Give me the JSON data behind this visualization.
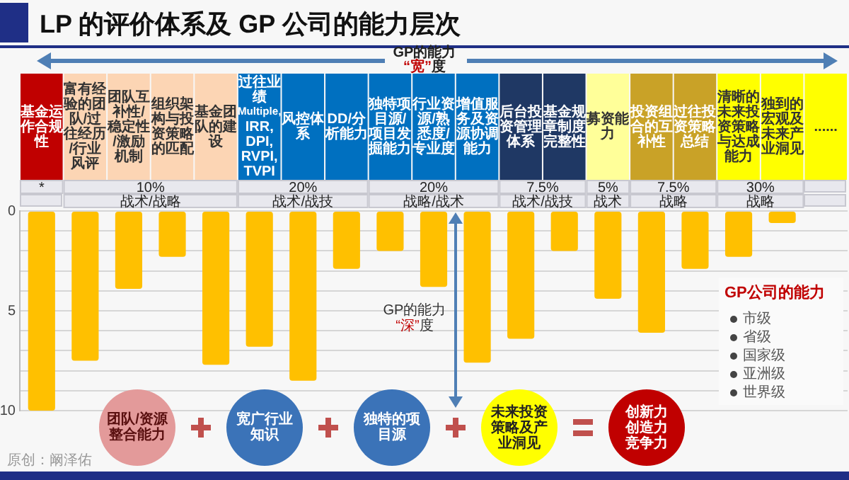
{
  "chart_data": {
    "type": "bar",
    "title": "LP 的评价体系及 GP 公司的能力层次",
    "categories": [
      "基金运作合规性",
      "富有经验的团队/过往经历/行业风评",
      "团队互补性/稳定性/激励机制",
      "组织架构与投资策略的匹配",
      "基金团队的建设",
      "过往业绩Multiple, IRR, DPI, RVPI, TVPI",
      "风控体系",
      "DD/分析能力",
      "独特项目源/项目发掘能力",
      "行业资源/熟悉度/专业度",
      "增值服务及资源协调能力",
      "后台投资管理体系",
      "基金规章制度完整性",
      "募资能力",
      "投资组合的互补性",
      "过往投资策略总结",
      "清晰的未来投资策略与达成能力",
      "独到的宏观及未来产业洞见",
      "......"
    ],
    "values": [
      10,
      7.5,
      3.9,
      2.3,
      7.7,
      6.8,
      8.5,
      2.9,
      2,
      3.8,
      7.6,
      6.4,
      2,
      4.4,
      6.1,
      2.9,
      2.3,
      0.6,
      null
    ],
    "color": "#ffc000",
    "ylim": [
      10,
      0
    ],
    "yticks": [
      0,
      {
        "value": 1,
        "label": null
      },
      {
        "value": 2,
        "label": null
      },
      {
        "value": 3,
        "label": null
      },
      {
        "value": 4,
        "label": null
      },
      5,
      {
        "value": 6,
        "label": null
      },
      {
        "value": 7,
        "label": null
      },
      {
        "value": 8,
        "label": null
      },
      {
        "value": 9,
        "label": null
      },
      10
    ],
    "grid": "y",
    "annotations": [
      "GP的能力\n“宽”度",
      "GP的能力\n“深”度",
      "*",
      "10%",
      "20%",
      "20%",
      "7.5%",
      "5%",
      "7.5%",
      "30%",
      "战术/战略",
      "战术/战技",
      "战略/战术",
      "战术/战技",
      "战术",
      "战略",
      "战略",
      "团队/资源整合能力",
      "宽广行业知识",
      "独特的项目源",
      "未来投资策略及产业洞见",
      "创新力创造力竞争力",
      "GP公司的能力",
      "市级",
      "省级",
      "国家级",
      "亚洲级",
      "世界级",
      "原创：阚泽佑"
    ]
  }
}
